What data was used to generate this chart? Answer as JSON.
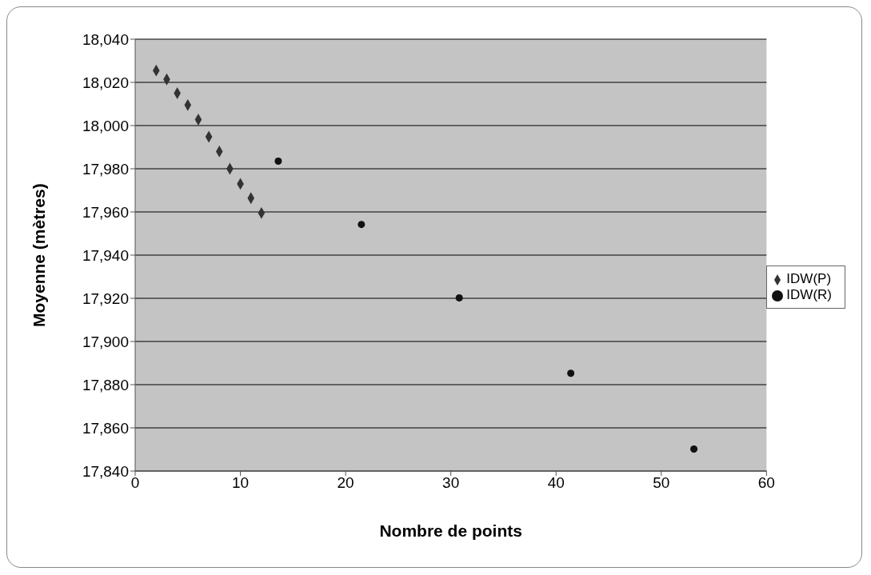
{
  "chart_data": {
    "type": "scatter",
    "xlabel": "Nombre de points",
    "ylabel": "Moyenne (mètres)",
    "xlim": [
      0,
      60
    ],
    "xticks": [
      0,
      10,
      20,
      30,
      40,
      50,
      60
    ],
    "ylim": [
      17840,
      18040
    ],
    "yticks": [
      {
        "value": 17840,
        "label": "17,840"
      },
      {
        "value": 17860,
        "label": "17,860"
      },
      {
        "value": 17880,
        "label": "17,880"
      },
      {
        "value": 17900,
        "label": "17,900"
      },
      {
        "value": 17920,
        "label": "17,920"
      },
      {
        "value": 17940,
        "label": "17,940"
      },
      {
        "value": 17960,
        "label": "17,960"
      },
      {
        "value": 17980,
        "label": "17,980"
      },
      {
        "value": 18000,
        "label": "18,000"
      },
      {
        "value": 18020,
        "label": "18,020"
      },
      {
        "value": 18040,
        "label": "18,040"
      }
    ],
    "grid": "y",
    "legend": "right",
    "series": [
      {
        "name": "IDW(P)",
        "color": "#333333",
        "marker": "diamond",
        "x": [
          2,
          3,
          4,
          5,
          6,
          7,
          8,
          9,
          10,
          11,
          12
        ],
        "values": [
          18025.5,
          18021.4,
          18015,
          18009.5,
          18002.8,
          17994.8,
          17988,
          17980,
          17973,
          17966.4,
          17959.5
        ]
      },
      {
        "name": "IDW(R)",
        "color": "#111111",
        "marker": "circle",
        "x": [
          13.6,
          21.5,
          30.8,
          41.4,
          53.1
        ],
        "values": [
          17983.5,
          17954.2,
          17920.2,
          17885.3,
          17850.2
        ]
      }
    ]
  }
}
